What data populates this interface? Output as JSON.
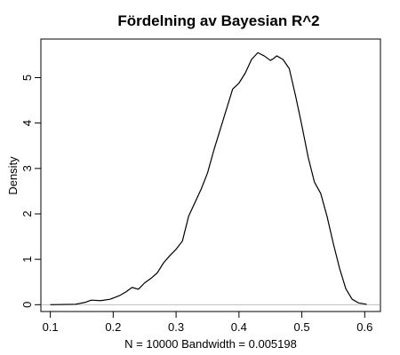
{
  "chart_data": {
    "type": "line",
    "title": "Fördelning av Bayesian R^2",
    "xlabel": "N = 10000   Bandwidth = 0.005198",
    "ylabel": "Density",
    "xlim": [
      0.085,
      0.625
    ],
    "ylim": [
      -0.15,
      5.85
    ],
    "x_ticks": [
      "0.1",
      "0.2",
      "0.3",
      "0.4",
      "0.5",
      "0.6"
    ],
    "x_tick_values": [
      0.1,
      0.2,
      0.3,
      0.4,
      0.5,
      0.6
    ],
    "y_ticks": [
      "0",
      "1",
      "2",
      "3",
      "4",
      "5"
    ],
    "y_tick_values": [
      0,
      1,
      2,
      3,
      4,
      5
    ],
    "baseline": 0,
    "baseline_color": "#bebebe",
    "line_color": "#000000",
    "series": [
      {
        "x": [
          0.1,
          0.14,
          0.155,
          0.165,
          0.18,
          0.195,
          0.21,
          0.22,
          0.23,
          0.24,
          0.25,
          0.26,
          0.27,
          0.28,
          0.29,
          0.3,
          0.31,
          0.32,
          0.33,
          0.34,
          0.35,
          0.36,
          0.37,
          0.38,
          0.39,
          0.4,
          0.41,
          0.42,
          0.43,
          0.44,
          0.45,
          0.455,
          0.46,
          0.47,
          0.48,
          0.49,
          0.5,
          0.51,
          0.52,
          0.53,
          0.54,
          0.55,
          0.56,
          0.57,
          0.58,
          0.59,
          0.603
        ],
        "y": [
          0.0,
          0.01,
          0.05,
          0.1,
          0.09,
          0.12,
          0.2,
          0.28,
          0.38,
          0.34,
          0.48,
          0.58,
          0.7,
          0.92,
          1.08,
          1.22,
          1.4,
          1.95,
          2.25,
          2.55,
          2.9,
          3.4,
          3.85,
          4.3,
          4.75,
          4.88,
          5.1,
          5.4,
          5.55,
          5.48,
          5.38,
          5.42,
          5.48,
          5.4,
          5.2,
          4.6,
          3.95,
          3.25,
          2.7,
          2.45,
          1.95,
          1.35,
          0.8,
          0.35,
          0.12,
          0.04,
          0.01
        ]
      }
    ]
  }
}
